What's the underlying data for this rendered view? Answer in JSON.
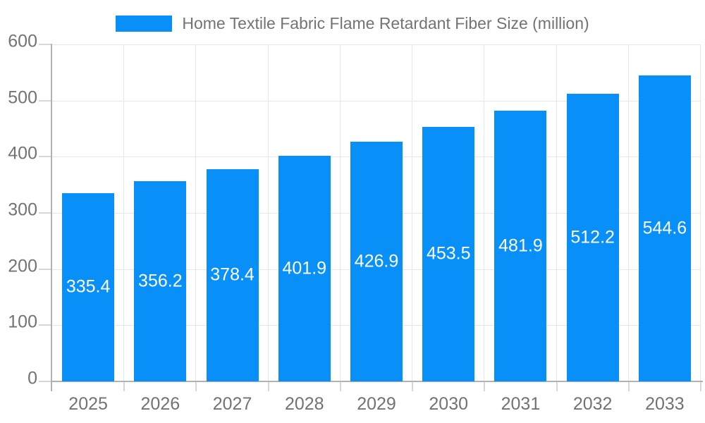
{
  "legend": {
    "label": "Home Textile Fabric Flame Retardant Fiber Size (million)"
  },
  "colors": {
    "bar_fill": "#0890f8",
    "grid": "#e7e7e7",
    "axis": "#b2b2b2",
    "tick": "#d6d6d6",
    "axis_text": "#737373",
    "value_text": "#ffffff",
    "background": "#ffffff"
  },
  "chart_data": {
    "type": "bar",
    "title": "Home Textile Fabric Flame Retardant Fiber Size (million)",
    "categories": [
      "2025",
      "2026",
      "2027",
      "2028",
      "2029",
      "2030",
      "2031",
      "2032",
      "2033"
    ],
    "values": [
      335.4,
      356.2,
      378.4,
      401.9,
      426.9,
      453.5,
      481.9,
      512.2,
      544.6
    ],
    "xlabel": "",
    "ylabel": "",
    "ylim": [
      0,
      600
    ],
    "yticks": [
      0,
      100,
      200,
      300,
      400,
      500,
      600
    ],
    "grid": true,
    "legend_position": "top",
    "value_label_position": "inside-center"
  }
}
